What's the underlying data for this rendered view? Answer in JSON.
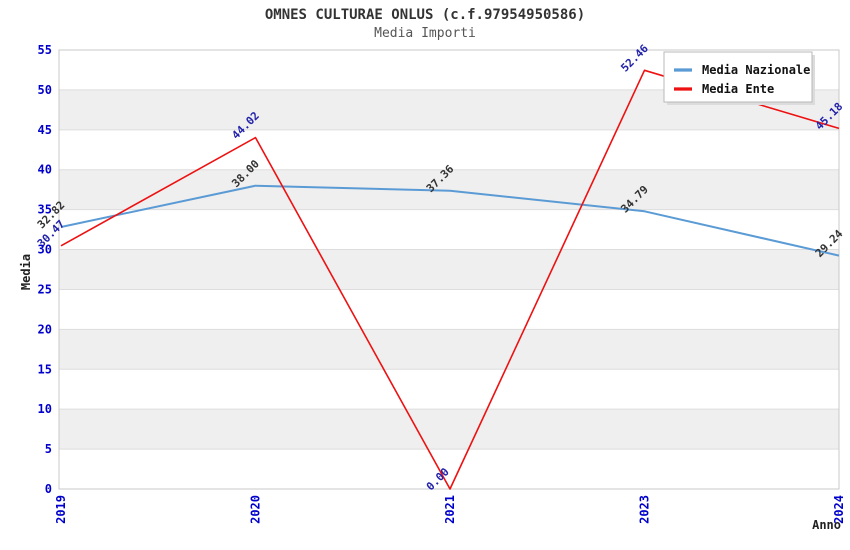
{
  "chart_data": {
    "type": "line",
    "title": "OMNES CULTURAE ONLUS (c.f.97954950586)",
    "subtitle": "Media Importi",
    "xlabel": "Anno",
    "ylabel": "Media",
    "ylim": [
      0,
      55
    ],
    "ytick_step": 5,
    "categories": [
      "2019",
      "2020",
      "2021",
      "2023",
      "2024"
    ],
    "series": [
      {
        "name": "Media Nazionale",
        "color": "#5B9BD5",
        "label_color": "#333333",
        "line_width": 2,
        "values": [
          32.82,
          38.0,
          37.36,
          34.79,
          29.24
        ],
        "labels": [
          "32.82",
          "38.00",
          "37.36",
          "34.79",
          "29.24"
        ]
      },
      {
        "name": "Media Ente",
        "color": "#EE1111",
        "label_color": "#2222AA",
        "line_width": 1.6,
        "values": [
          30.47,
          44.02,
          0.0,
          52.46,
          45.18
        ],
        "labels": [
          "30.47",
          "44.02",
          "0.00",
          "52.46",
          "45.18"
        ]
      }
    ],
    "legend": {
      "position": "top-right",
      "entries": [
        "Media Nazionale",
        "Media Ente"
      ]
    },
    "grid": "horizontal-bands",
    "colors": {
      "axis_text": "#0000CC",
      "band_fill": "#EFEFEF",
      "grid_line": "#DDDDDD",
      "border": "#C9C9C9",
      "title": "#333333",
      "subtitle": "#555555",
      "legend_border": "#B8B8B8",
      "legend_shadow": "#DCDCDC"
    }
  }
}
